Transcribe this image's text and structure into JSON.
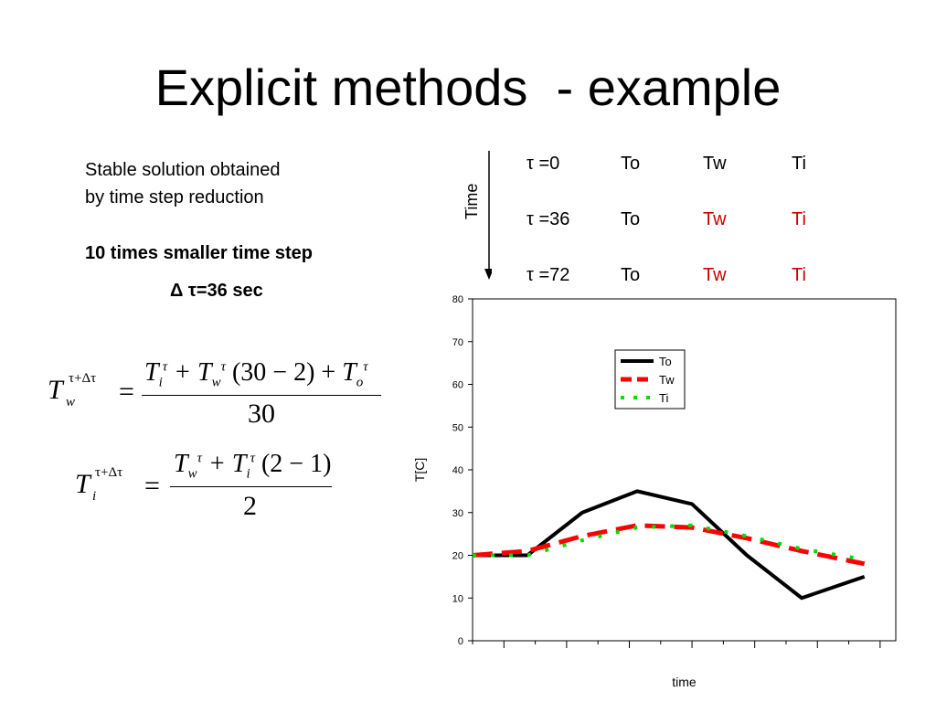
{
  "title": "Explicit methods  - example",
  "left_text": {
    "line1": "Stable solution obtained",
    "line2": "by time step reduction",
    "bold_line": "10 times smaller time step",
    "delta_line": "Δ τ=36 sec"
  },
  "equations": {
    "eq1": {
      "lhs": "T",
      "lhs_sup": "τ+Δτ",
      "lhs_sub": "w",
      "numerator": "T_i^τ + T_w^τ (30−2) + T_o^τ",
      "denominator": "30"
    },
    "eq2": {
      "lhs": "T",
      "lhs_sup": "τ+Δτ",
      "lhs_sub": "i",
      "numerator": "T_w^τ + T_i^τ (2−1)",
      "denominator": "2"
    }
  },
  "time_table": {
    "axis_label": "Time",
    "rows": [
      {
        "tau": "τ =0",
        "to": "To",
        "tw": "Tw",
        "ti": "Ti",
        "tw_color": "#000000",
        "ti_color": "#000000"
      },
      {
        "tau": "τ =36",
        "to": "To",
        "tw": "Tw",
        "ti": "Ti",
        "tw_color": "#cc0000",
        "ti_color": "#cc0000"
      },
      {
        "tau": "τ =72",
        "to": "To",
        "tw": "Tw",
        "ti": "Ti",
        "tw_color": "#cc0000",
        "ti_color": "#cc0000"
      }
    ]
  },
  "chart_data": {
    "type": "line",
    "xlabel": "time",
    "ylabel": "T[C]",
    "ylim": [
      0,
      80
    ],
    "yticks": [
      0,
      10,
      20,
      30,
      40,
      50,
      60,
      70,
      80
    ],
    "xlim": [
      0,
      13.5
    ],
    "x_major_ticks": [
      1,
      3,
      5,
      7,
      9,
      11,
      13
    ],
    "x_minor_ticks": [
      0,
      2,
      4,
      6,
      8,
      10,
      12
    ],
    "grid": false,
    "legend_position": "top-right",
    "series": [
      {
        "name": "To",
        "color": "#000000",
        "style": "solid",
        "x": [
          0,
          1.75,
          3.5,
          5.25,
          7,
          8.75,
          10.5,
          12.5
        ],
        "y": [
          20,
          20,
          30,
          35,
          32,
          20,
          10,
          15
        ]
      },
      {
        "name": "Tw",
        "color": "#ff0000",
        "style": "dashed",
        "x": [
          0,
          1.75,
          3.5,
          5.25,
          7,
          8.75,
          10.5,
          12.5
        ],
        "y": [
          20,
          21,
          24.5,
          27,
          26.5,
          24,
          21,
          18
        ]
      },
      {
        "name": "Ti",
        "color": "#00dd00",
        "style": "dotted",
        "x": [
          0,
          1.75,
          3.5,
          5.25,
          7,
          8.75,
          10.5,
          12.5
        ],
        "y": [
          20,
          20,
          23.5,
          26.5,
          27,
          24.5,
          21.5,
          19
        ]
      }
    ]
  }
}
